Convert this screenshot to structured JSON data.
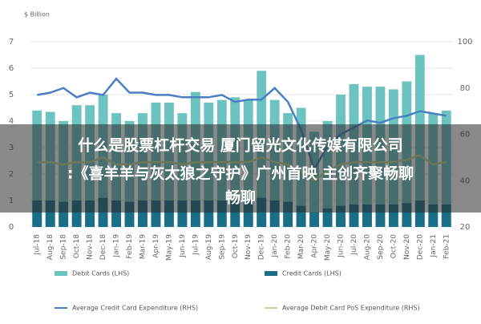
{
  "chart_data": {
    "type": "bar",
    "y_label": "$ Billion",
    "categories": [
      "Jul-18",
      "Aug-18",
      "Sep-18",
      "Oct-18",
      "Nov-18",
      "Dec-18",
      "Jan-19",
      "Feb-19",
      "Mar-19",
      "Apr-19",
      "May-19",
      "Jun-19",
      "Jul-19",
      "Aug-19",
      "Sep-19",
      "Oct-19",
      "Nov-19",
      "Dec-19",
      "Jan-20",
      "Feb-20",
      "Mar-20",
      "Apr-20",
      "May-20",
      "Jun-20",
      "Jul-20",
      "Aug-20",
      "Sep-20",
      "Oct-20",
      "Nov-20",
      "Dec-20",
      "Jan-21",
      "Feb-21"
    ],
    "series": [
      {
        "name": "Debit Cards (LHS)",
        "color": "#6cc3c0",
        "kind": "bar",
        "values": [
          4.4,
          4.35,
          4.0,
          4.6,
          4.6,
          5.0,
          4.3,
          4.0,
          4.3,
          4.7,
          4.7,
          4.3,
          5.1,
          4.7,
          4.8,
          4.9,
          4.8,
          5.9,
          4.8,
          4.3,
          4.5,
          3.6,
          4.0,
          5.0,
          5.4,
          5.3,
          5.3,
          5.2,
          5.5,
          6.5,
          4.3,
          4.4
        ]
      },
      {
        "name": "Credit Cards (LHS)",
        "color": "#1a6f87",
        "kind": "bar",
        "values": [
          1.0,
          1.0,
          0.95,
          1.0,
          1.0,
          1.1,
          1.0,
          0.95,
          1.0,
          1.0,
          1.0,
          1.0,
          1.0,
          1.0,
          1.0,
          1.0,
          1.0,
          1.1,
          1.0,
          0.95,
          0.8,
          0.55,
          0.7,
          0.8,
          0.85,
          0.85,
          0.85,
          0.85,
          0.9,
          1.0,
          0.85,
          0.85
        ]
      },
      {
        "name": "Average Credit Card Expenditure (RHS)",
        "color": "#4a7fc1",
        "kind": "line",
        "axis": "y2",
        "values": [
          77,
          78,
          80,
          76,
          78,
          77,
          84,
          78,
          78,
          77,
          77,
          76,
          76,
          76,
          77,
          74,
          75,
          75,
          80,
          74,
          62,
          45,
          55,
          60,
          63,
          66,
          65,
          67,
          68,
          70,
          69,
          68
        ]
      },
      {
        "name": "Average Debit Card PoS Expenditure (RHS)",
        "color": "#b9d89a",
        "kind": "line",
        "axis": "y2",
        "values": [
          48,
          48,
          47,
          48,
          48,
          50,
          47,
          47,
          48,
          48,
          48,
          47,
          48,
          48,
          48,
          48,
          48,
          50,
          48,
          47,
          44,
          40,
          44,
          47,
          48,
          48,
          48,
          48,
          49,
          51,
          47,
          48
        ]
      }
    ],
    "ylim": [
      0,
      7
    ],
    "yticks": [
      0,
      1,
      2,
      3,
      4,
      5,
      6,
      7
    ],
    "y2lim": [
      20,
      100
    ],
    "y2ticks": [
      20,
      40,
      60,
      80,
      100
    ],
    "grid": true
  },
  "banner": {
    "lines": [
      "什么是股票杠杆交易 厦门留光文化传媒有限公司",
      ":《喜羊羊与灰太狼之守护》广州首映 主创齐聚畅聊",
      "畅聊"
    ]
  }
}
